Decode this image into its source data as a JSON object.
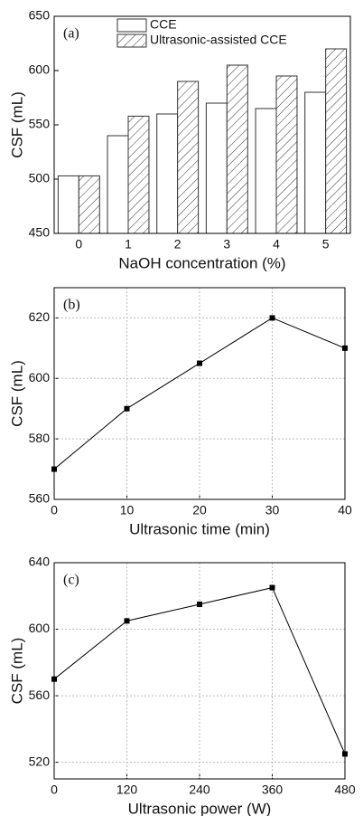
{
  "chart_data": [
    {
      "type": "bar",
      "annotation": "(a)",
      "xlabel": "NaOH concentration (%)",
      "ylabel": "CSF (mL)",
      "categories": [
        "0",
        "1",
        "2",
        "3",
        "4",
        "5"
      ],
      "series": [
        {
          "name": "CCE",
          "color": "#ffffff",
          "values": [
            503,
            540,
            560,
            570,
            565,
            580
          ]
        },
        {
          "name": "Ultrasonic-assisted CCE",
          "color": "#ffffff",
          "hatch": true,
          "values": [
            503,
            558,
            590,
            605,
            595,
            620
          ]
        }
      ],
      "ylim": [
        450,
        650
      ],
      "yticks": [
        450,
        500,
        550,
        600,
        650
      ],
      "grid": false,
      "legend": "top"
    },
    {
      "type": "line",
      "annotation": "(b)",
      "xlabel": "Ultrasonic time (min)",
      "ylabel": "CSF (mL)",
      "x": [
        0,
        10,
        20,
        30,
        40
      ],
      "values": [
        570,
        590,
        605,
        620,
        610
      ],
      "color": "#000000",
      "xlim": [
        0,
        40
      ],
      "xticks": [
        0,
        10,
        20,
        30,
        40
      ],
      "ylim": [
        560,
        630
      ],
      "yticks": [
        560,
        580,
        600,
        620
      ],
      "grid": true
    },
    {
      "type": "line",
      "annotation": "(c)",
      "xlabel": "Ultrasonic power (W)",
      "ylabel": "CSF (mL)",
      "x": [
        0,
        120,
        240,
        360,
        480
      ],
      "values": [
        570,
        605,
        615,
        625,
        525
      ],
      "color": "#000000",
      "xlim": [
        0,
        480
      ],
      "xticks": [
        0,
        120,
        240,
        360,
        480
      ],
      "ylim": [
        510,
        640
      ],
      "yticks": [
        520,
        560,
        600,
        640
      ],
      "grid": true
    }
  ]
}
